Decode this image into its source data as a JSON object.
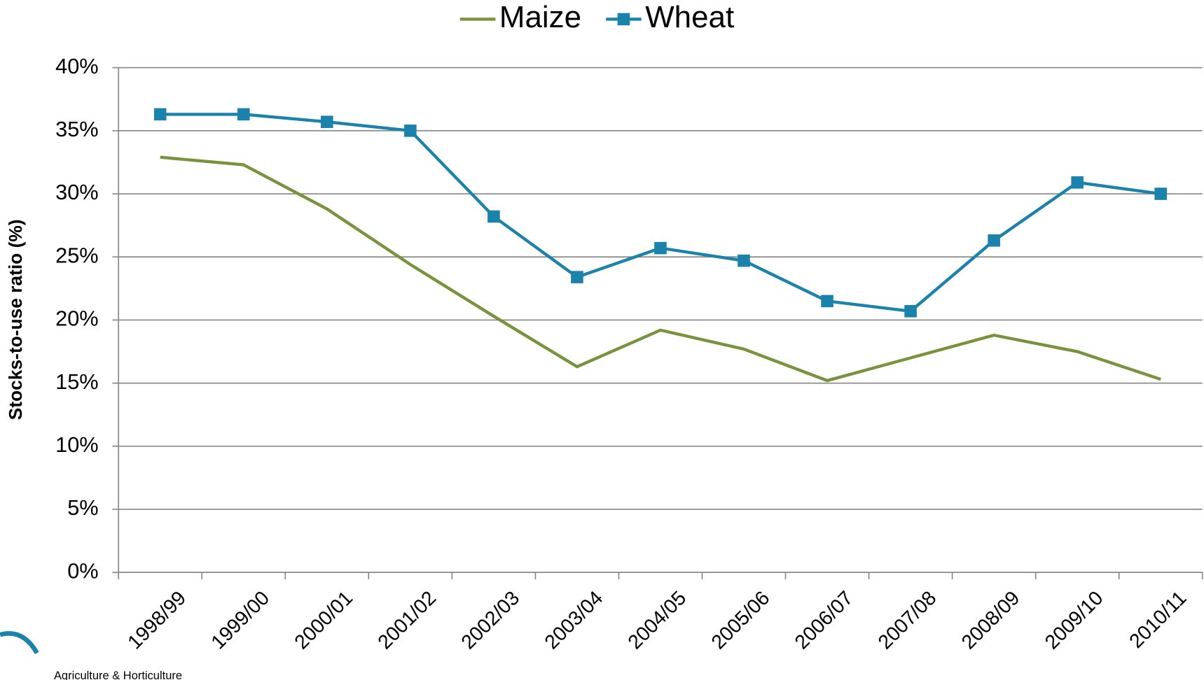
{
  "chart_data": {
    "type": "line",
    "y_label": "Stocks-to-use ratio (%)",
    "logo_text": "Agriculture & Horticulture",
    "categories": [
      "1998/99",
      "1999/00",
      "2000/01",
      "2001/02",
      "2002/03",
      "2003/04",
      "2004/05",
      "2005/06",
      "2006/07",
      "2007/08",
      "2008/09",
      "2009/10",
      "2010/11"
    ],
    "series": [
      {
        "name": "Maize",
        "color": "#77933c",
        "marker": "none",
        "values": [
          32.9,
          32.3,
          28.8,
          24.4,
          20.3,
          16.3,
          19.2,
          17.7,
          15.2,
          17.0,
          18.8,
          17.5,
          15.3
        ]
      },
      {
        "name": "Wheat",
        "color": "#1a82ab",
        "marker": "square",
        "values": [
          36.3,
          36.3,
          35.7,
          35.0,
          28.2,
          23.4,
          25.7,
          24.7,
          21.5,
          20.7,
          26.3,
          30.9,
          30.0
        ]
      }
    ],
    "ylim": [
      0,
      40
    ],
    "yticks": [
      {
        "value": 0,
        "label": "0%"
      },
      {
        "value": 5,
        "label": "5%"
      },
      {
        "value": 10,
        "label": "10%"
      },
      {
        "value": 15,
        "label": "15%"
      },
      {
        "value": 20,
        "label": "20%"
      },
      {
        "value": 25,
        "label": "25%"
      },
      {
        "value": 30,
        "label": "30%"
      },
      {
        "value": 35,
        "label": "35%"
      },
      {
        "value": 40,
        "label": "40%"
      }
    ],
    "grid": true,
    "legend": "top"
  }
}
